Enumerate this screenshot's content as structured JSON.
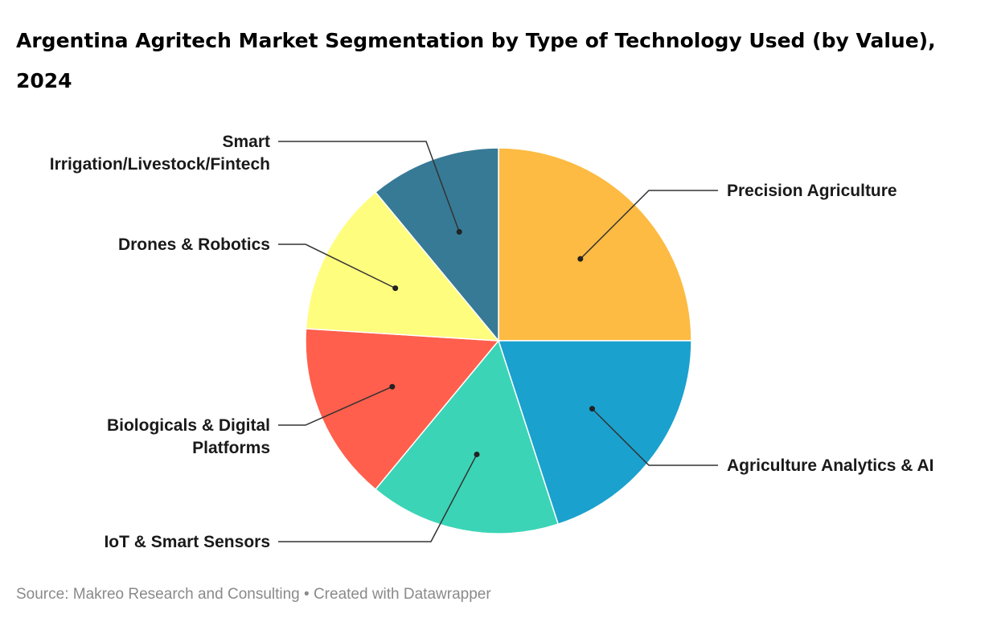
{
  "title": "Argentina Agritech Market Segmentation by Type of Technology Used (by Value), 2024",
  "footer": "Source: Makreo Research and Consulting • Created with Datawrapper",
  "chart_data": {
    "type": "pie",
    "title": "Argentina Agritech Market Segmentation by Type of Technology Used (by Value), 2024",
    "slices": [
      {
        "label": "Precision Agriculture",
        "value": 25,
        "color": "#FDBB43"
      },
      {
        "label": "Agriculture Analytics & AI",
        "value": 20,
        "color": "#1AA1CE"
      },
      {
        "label": "IoT & Smart Sensors",
        "value": 16,
        "color": "#3BD4B6"
      },
      {
        "label": "Biologicals & Digital Platforms",
        "value": 15,
        "color": "#FF5F4C"
      },
      {
        "label": "Drones & Robotics",
        "value": 13,
        "color": "#FFFD7E"
      },
      {
        "label": "Smart Irrigation/Livestock/Fintech",
        "value": 11,
        "color": "#377A96"
      }
    ]
  }
}
